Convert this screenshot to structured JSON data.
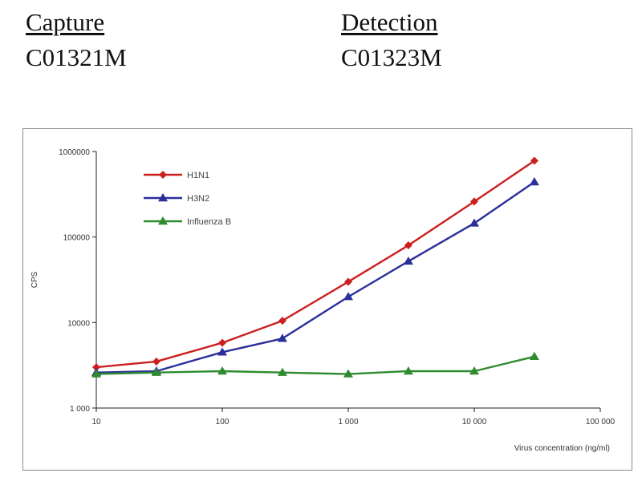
{
  "header": {
    "capture_heading": "Capture",
    "capture_code": "C01321M",
    "detection_heading": "Detection",
    "detection_code": "C01323M"
  },
  "chart_data": {
    "type": "line",
    "x_scale": "log",
    "y_scale": "log",
    "xlabel": "Virus concentration (ng/ml)",
    "ylabel": "CPS",
    "xlim": [
      10,
      100000
    ],
    "ylim": [
      1000,
      1000000
    ],
    "x_ticks": [
      10,
      100,
      1000,
      10000,
      100000
    ],
    "x_tick_labels": [
      "10",
      "100",
      "1 000",
      "10 000",
      "100 000"
    ],
    "y_ticks": [
      1000,
      10000,
      100000,
      1000000
    ],
    "y_tick_labels": [
      "1 000",
      "10000",
      "100000",
      "1000000"
    ],
    "legend_position": "top-left inside",
    "grid": false,
    "x": [
      10,
      30,
      100,
      300,
      1000,
      3000,
      10000,
      30000
    ],
    "series": [
      {
        "name": "H1N1",
        "color": "#cc1f1f",
        "marker": "diamond",
        "values": [
          3000,
          3500,
          5800,
          10500,
          30000,
          80000,
          260000,
          780000
        ]
      },
      {
        "name": "H3N2",
        "color": "#2b2f9a",
        "marker": "triangle",
        "values": [
          2600,
          2700,
          4500,
          6500,
          20000,
          52000,
          145000,
          440000
        ]
      },
      {
        "name": "Influenza B",
        "color": "#2e8b2e",
        "marker": "triangle",
        "values": [
          2500,
          2600,
          2700,
          2600,
          2500,
          2700,
          2700,
          4000
        ]
      }
    ]
  }
}
